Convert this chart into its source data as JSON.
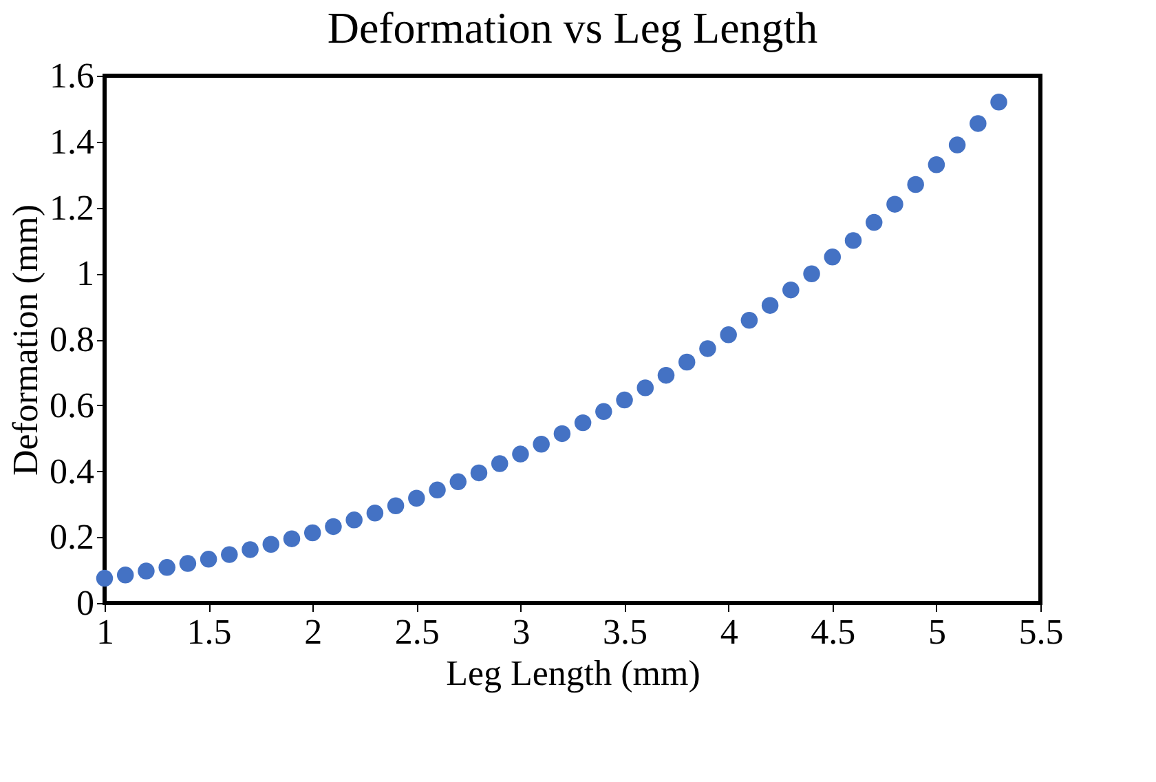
{
  "chart_data": {
    "type": "scatter",
    "title": "Deformation vs Leg Length",
    "xlabel": "Leg Length (mm)",
    "ylabel": "Deformation (mm)",
    "x": [
      1.0,
      1.1,
      1.2,
      1.3,
      1.4,
      1.5,
      1.6,
      1.7,
      1.8,
      1.9,
      2.0,
      2.1,
      2.2,
      2.3,
      2.4,
      2.5,
      2.6,
      2.7,
      2.8,
      2.9,
      3.0,
      3.1,
      3.2,
      3.3,
      3.4,
      3.5,
      3.6,
      3.7,
      3.8,
      3.9,
      4.0,
      4.1,
      4.2,
      4.3,
      4.4,
      4.5,
      4.6,
      4.7,
      4.8,
      4.9,
      5.0,
      5.1,
      5.2,
      5.3
    ],
    "series": [
      {
        "color": "#4472c4",
        "values": [
          0.075,
          0.085,
          0.097,
          0.108,
          0.12,
          0.133,
          0.147,
          0.162,
          0.178,
          0.195,
          0.213,
          0.232,
          0.252,
          0.273,
          0.295,
          0.318,
          0.343,
          0.368,
          0.395,
          0.423,
          0.452,
          0.482,
          0.514,
          0.547,
          0.581,
          0.616,
          0.653,
          0.691,
          0.731,
          0.772,
          0.814,
          0.858,
          0.903,
          0.95,
          0.999,
          1.05,
          1.1,
          1.155,
          1.21,
          1.27,
          1.33,
          1.39,
          1.455,
          1.52
        ]
      }
    ],
    "xlim": [
      1,
      5.5
    ],
    "xticks": [
      1,
      1.5,
      2,
      2.5,
      3,
      3.5,
      4,
      4.5,
      5,
      5.5
    ],
    "ylim": [
      0,
      1.6
    ],
    "yticks": [
      0,
      0.2,
      0.4,
      0.6,
      0.8,
      1,
      1.2,
      1.4,
      1.6
    ],
    "grid": false,
    "legend": false,
    "marker": "circle"
  }
}
